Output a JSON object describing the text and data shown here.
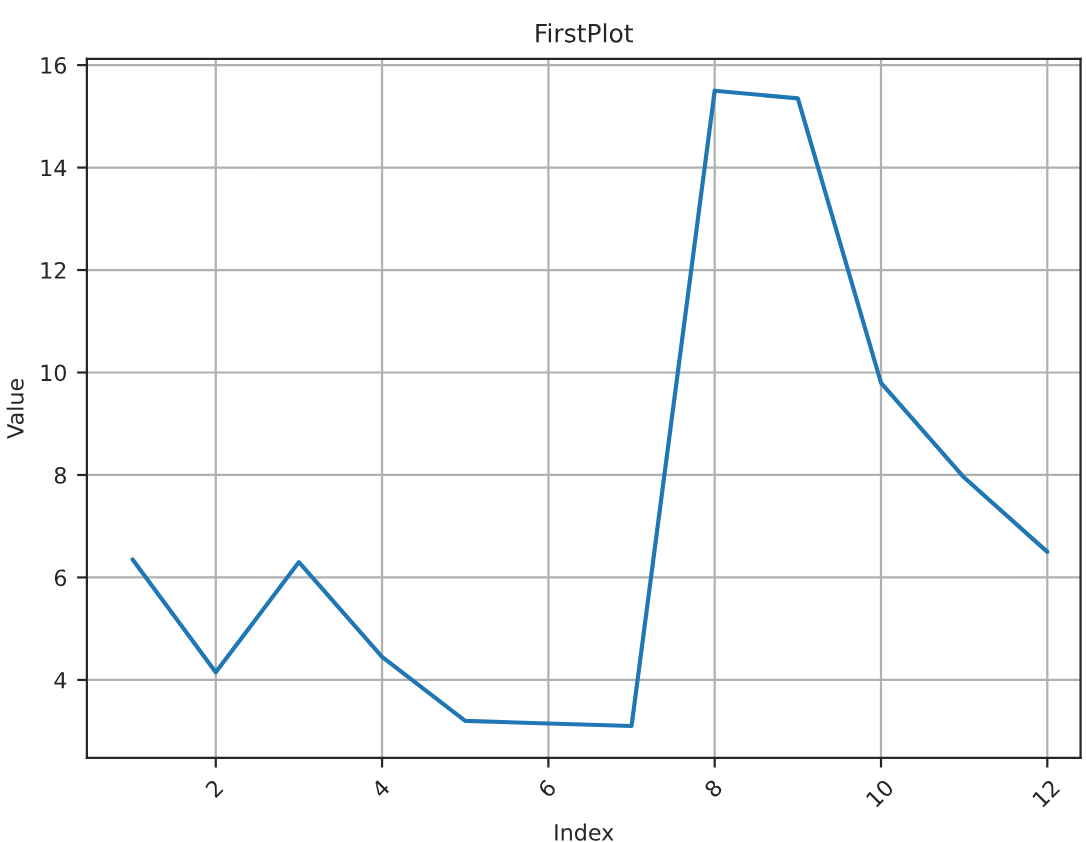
{
  "chart_data": {
    "type": "line",
    "title": "FirstPlot",
    "xlabel": "Index",
    "ylabel": "Value",
    "x": [
      1,
      2,
      3,
      4,
      5,
      6,
      7,
      8,
      9,
      10,
      11,
      12
    ],
    "series": [
      {
        "color": "#1f77b4",
        "values": [
          6.35,
          4.15,
          6.3,
          4.45,
          3.2,
          3.15,
          3.1,
          15.5,
          15.35,
          9.8,
          7.95,
          6.5
        ]
      }
    ],
    "xlim": [
      0.45,
      12.4
    ],
    "ylim": [
      2.48,
      16.12
    ],
    "xticks": [
      2,
      4,
      6,
      8,
      10,
      12
    ],
    "yticks": [
      4,
      6,
      8,
      10,
      12,
      14,
      16
    ],
    "grid": true
  }
}
